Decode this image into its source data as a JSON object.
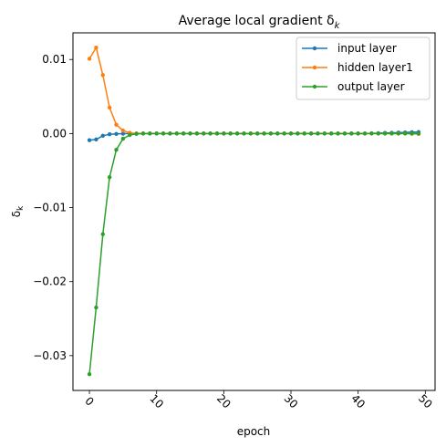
{
  "chart_data": {
    "type": "line",
    "title": "Average local gradient δ",
    "title_subscript": "k",
    "xlabel": "epoch",
    "ylabel": "δ",
    "ylabel_subscript": "k",
    "xlim": [
      -2.45,
      51.45
    ],
    "ylim": [
      -0.0347,
      0.0136
    ],
    "xticks": [
      0,
      10,
      20,
      30,
      40,
      50
    ],
    "xtick_labels": [
      "0",
      "10",
      "20",
      "30",
      "40",
      "50"
    ],
    "yticks": [
      -0.03,
      -0.02,
      -0.01,
      0.0,
      0.01
    ],
    "ytick_labels": [
      "−0.03",
      "−0.02",
      "−0.01",
      "0.00",
      "0.01"
    ],
    "grid": false,
    "legend_position": "top-right",
    "x": [
      0,
      1,
      2,
      3,
      4,
      5,
      6,
      7,
      8,
      9,
      10,
      11,
      12,
      13,
      14,
      15,
      16,
      17,
      18,
      19,
      20,
      21,
      22,
      23,
      24,
      25,
      26,
      27,
      28,
      29,
      30,
      31,
      32,
      33,
      34,
      35,
      36,
      37,
      38,
      39,
      40,
      41,
      42,
      43,
      44,
      45,
      46,
      47,
      48,
      49
    ],
    "series": [
      {
        "name": "input layer",
        "color": "#1f77b4",
        "values": [
          -0.0009,
          -0.0008,
          -0.0003,
          -0.0001,
          -5e-05,
          -2e-05,
          0,
          0,
          0,
          0,
          0,
          0,
          0,
          0,
          0,
          0,
          0,
          0,
          0,
          0,
          0,
          0,
          0,
          0,
          0,
          0,
          0,
          0,
          0,
          0,
          0,
          0,
          0,
          0,
          0,
          0,
          0,
          0,
          0,
          0,
          0,
          0,
          3e-05,
          5e-05,
          8e-05,
          0.0001,
          0.00013,
          0.00015,
          0.00018,
          0.0002
        ]
      },
      {
        "name": "hidden layer1",
        "color": "#ff7f0e",
        "values": [
          0.0101,
          0.0116,
          0.0079,
          0.0035,
          0.0012,
          0.0004,
          0.0001,
          0,
          0,
          0,
          0,
          0,
          0,
          0,
          0,
          0,
          0,
          0,
          0,
          0,
          0,
          0,
          0,
          0,
          0,
          0,
          0,
          0,
          0,
          0,
          0,
          0,
          0,
          0,
          0,
          0,
          0,
          0,
          0,
          0,
          0,
          0,
          0,
          0,
          0,
          0,
          0,
          0,
          -3e-05,
          -5e-05
        ]
      },
      {
        "name": "output layer",
        "color": "#2ca02c",
        "values": [
          -0.0325,
          -0.0235,
          -0.0136,
          -0.0059,
          -0.0022,
          -0.0007,
          -0.0002,
          -5e-05,
          0,
          0,
          0,
          0,
          0,
          0,
          0,
          0,
          0,
          0,
          0,
          0,
          0,
          0,
          0,
          0,
          0,
          0,
          0,
          0,
          0,
          0,
          0,
          0,
          0,
          0,
          0,
          0,
          0,
          0,
          0,
          0,
          0,
          0,
          0,
          0,
          0,
          0,
          0,
          0,
          0,
          0
        ]
      }
    ]
  }
}
